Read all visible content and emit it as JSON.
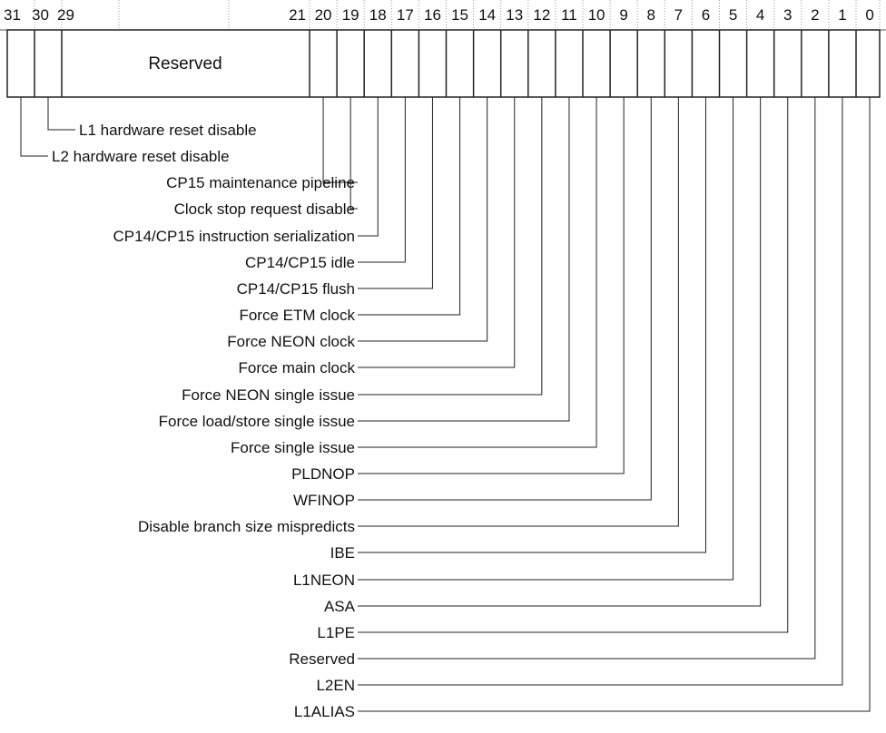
{
  "bit_numbers": [
    "31",
    "30",
    "29",
    "21",
    "20",
    "19",
    "18",
    "17",
    "16",
    "15",
    "14",
    "13",
    "12",
    "11",
    "10",
    "9",
    "8",
    "7",
    "6",
    "5",
    "4",
    "3",
    "2",
    "1",
    "0"
  ],
  "register": {
    "reserved_label": "Reserved"
  },
  "fields": [
    {
      "bit": 30,
      "label": "L1 hardware reset disable"
    },
    {
      "bit": 31,
      "label": "L2 hardware reset disable"
    },
    {
      "bit": 20,
      "label": "CP15 maintenance pipeline"
    },
    {
      "bit": 19,
      "label": "Clock stop request disable"
    },
    {
      "bit": 18,
      "label": "CP14/CP15 instruction serialization"
    },
    {
      "bit": 17,
      "label": "CP14/CP15 idle"
    },
    {
      "bit": 16,
      "label": "CP14/CP15 flush"
    },
    {
      "bit": 15,
      "label": "Force ETM clock"
    },
    {
      "bit": 14,
      "label": "Force NEON clock"
    },
    {
      "bit": 13,
      "label": "Force main clock"
    },
    {
      "bit": 12,
      "label": "Force NEON  single issue"
    },
    {
      "bit": 11,
      "label": "Force load/store single issue"
    },
    {
      "bit": 10,
      "label": "Force single issue"
    },
    {
      "bit": 9,
      "label": "PLDNOP"
    },
    {
      "bit": 8,
      "label": "WFINOP"
    },
    {
      "bit": 7,
      "label": "Disable branch size mispredicts"
    },
    {
      "bit": 6,
      "label": "IBE"
    },
    {
      "bit": 5,
      "label": "L1NEON"
    },
    {
      "bit": 4,
      "label": "ASA"
    },
    {
      "bit": 3,
      "label": "L1PE"
    },
    {
      "bit": 2,
      "label": "Reserved"
    },
    {
      "bit": 1,
      "label": "L2EN"
    },
    {
      "bit": 0,
      "label": "L1ALIAS"
    }
  ]
}
